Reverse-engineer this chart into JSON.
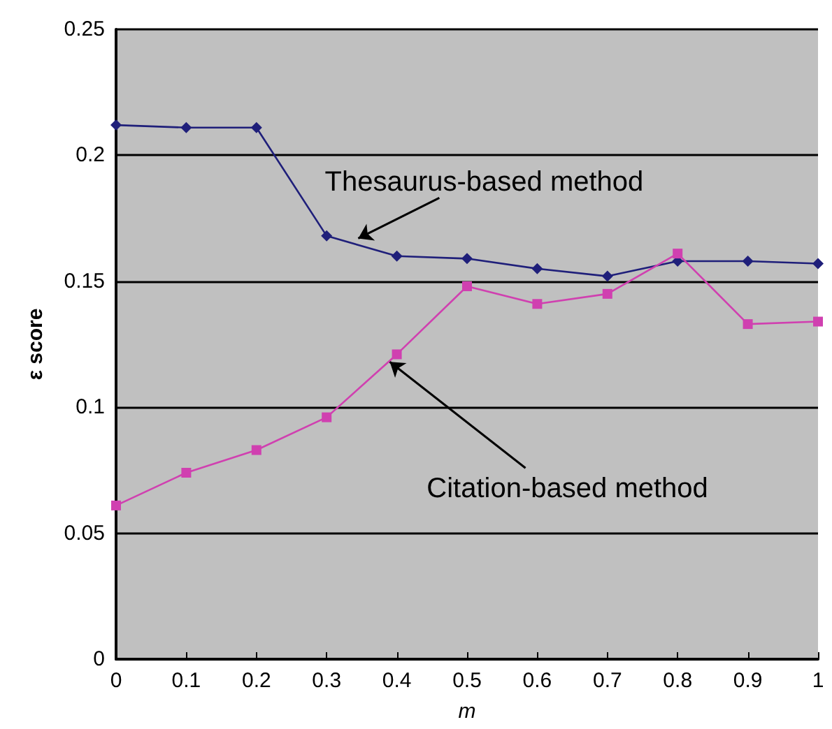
{
  "chart_data": {
    "type": "line",
    "xlabel": "m",
    "ylabel": "ε score",
    "x": [
      0,
      0.1,
      0.2,
      0.3,
      0.4,
      0.5,
      0.6,
      0.7,
      0.8,
      0.9,
      1
    ],
    "xlim": [
      0,
      1
    ],
    "xticks": [
      0,
      0.1,
      0.2,
      0.3,
      0.4,
      0.5,
      0.6,
      0.7,
      0.8,
      0.9,
      1
    ],
    "ylim": [
      0,
      0.25
    ],
    "yticks": [
      0,
      0.05,
      0.1,
      0.15,
      0.2,
      0.25
    ],
    "grid": "y",
    "series": [
      {
        "color": "#1f1f7a",
        "marker": "diamond",
        "values": [
          0.212,
          0.211,
          0.211,
          0.168,
          0.16,
          0.159,
          0.155,
          0.152,
          0.158,
          0.158,
          0.157
        ]
      },
      {
        "color": "#d040b0",
        "marker": "square",
        "values": [
          0.061,
          0.074,
          0.083,
          0.096,
          0.121,
          0.148,
          0.141,
          0.145,
          0.161,
          0.133,
          0.134
        ]
      }
    ],
    "annotations": [
      {
        "text": "Thesaurus-based method",
        "x": 0.345,
        "y": 0.167
      },
      {
        "text": "Citation-based method",
        "x": 0.39,
        "y": 0.118
      }
    ]
  }
}
